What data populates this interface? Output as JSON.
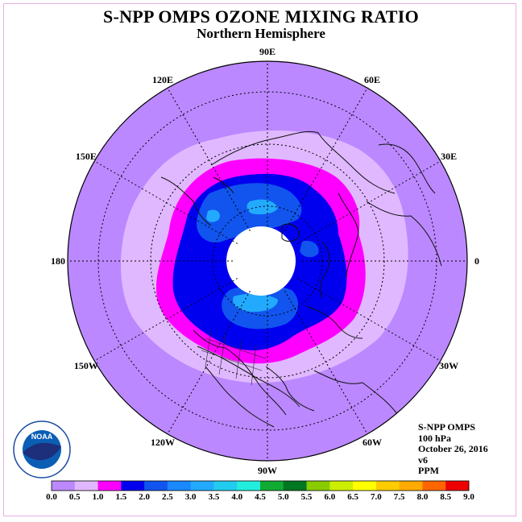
{
  "header": {
    "title": "S-NPP OMPS OZONE MIXING RATIO",
    "subtitle": "Northern Hemisphere"
  },
  "map": {
    "projection": "north-polar-stereographic",
    "longitude_labels": [
      "90E",
      "60E",
      "30E",
      "0",
      "30W",
      "60W",
      "90W",
      "120W",
      "150W",
      "180",
      "150E",
      "120E"
    ]
  },
  "info": {
    "instrument": "S-NPP OMPS",
    "level": "100 hPa",
    "date": "October 26, 2016",
    "version": "v6",
    "units": "PPM"
  },
  "colorbar": {
    "labels": [
      "0.0",
      "0.5",
      "1.0",
      "1.5",
      "2.0",
      "2.5",
      "3.0",
      "3.5",
      "4.0",
      "4.5",
      "5.0",
      "5.5",
      "6.0",
      "6.5",
      "7.0",
      "7.5",
      "8.0",
      "8.5",
      "9.0"
    ],
    "colors": [
      "#bb88ff",
      "#e0b8ff",
      "#ff00ff",
      "#0000ee",
      "#1155ee",
      "#1a88ff",
      "#22aaff",
      "#22ccee",
      "#22eedd",
      "#11aa33",
      "#007722",
      "#88cc00",
      "#ccee00",
      "#ffff00",
      "#ffcc00",
      "#ffaa00",
      "#ff6600",
      "#ee0000",
      "#885533"
    ]
  },
  "logo": {
    "text": "NOAA"
  }
}
